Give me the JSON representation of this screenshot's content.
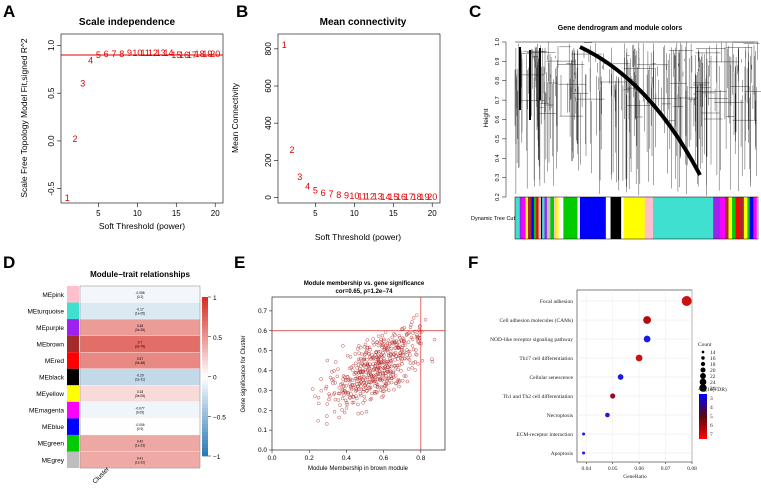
{
  "colors": {
    "red": "#e00000",
    "pos": "#d7301f",
    "neg": "#2c7fb8"
  },
  "chart_data": [
    {
      "panel": "A",
      "type": "scatter",
      "title": "Scale independence",
      "xlabel": "Soft Threshold (power)",
      "ylabel": "Scale Free Topology Model Fit,signed R^2",
      "x": [
        1,
        2,
        3,
        4,
        5,
        6,
        7,
        8,
        9,
        10,
        11,
        12,
        13,
        14,
        15,
        16,
        17,
        18,
        19,
        20
      ],
      "y": [
        -0.6,
        0.02,
        0.6,
        0.84,
        0.9,
        0.91,
        0.91,
        0.91,
        0.92,
        0.92,
        0.92,
        0.92,
        0.92,
        0.92,
        0.9,
        0.9,
        0.9,
        0.91,
        0.91,
        0.91
      ],
      "hline": 0.9,
      "xlim": [
        0.2,
        21
      ],
      "ylim": [
        -0.65,
        1.12
      ],
      "xticks": [
        "5",
        "10",
        "15",
        "20"
      ],
      "yticks": [
        "-0.5",
        "0.0",
        "0.5",
        "1.0"
      ]
    },
    {
      "panel": "B",
      "type": "scatter",
      "title": "Mean connectivity",
      "xlabel": "Soft Threshold (power)",
      "ylabel": "Mean Connectivity",
      "x": [
        1,
        2,
        3,
        4,
        5,
        6,
        7,
        8,
        9,
        10,
        11,
        12,
        13,
        14,
        15,
        16,
        17,
        18,
        19,
        20
      ],
      "y": [
        820,
        255,
        110,
        60,
        38,
        25,
        18,
        13,
        10,
        8,
        6,
        5,
        4,
        3,
        3,
        2,
        2,
        2,
        1,
        1
      ],
      "xlim": [
        0.2,
        21
      ],
      "ylim": [
        -30,
        880
      ],
      "xticks": [
        "5",
        "10",
        "15",
        "20"
      ],
      "yticks": [
        "0",
        "200",
        "400",
        "600",
        "800"
      ]
    },
    {
      "panel": "C",
      "type": "dendrogram",
      "title": "Gene dendrogram and module colors",
      "ylabel": "Height",
      "row_label": "Dynamic Tree Cut",
      "yticks": [
        "0.2",
        "0.3",
        "0.4",
        "0.5",
        "0.6",
        "0.7",
        "0.8",
        "0.9",
        "1.0"
      ]
    },
    {
      "panel": "D",
      "type": "heatmap",
      "title": "Module−trait relationships",
      "xlabel": "Cluster",
      "modules": [
        "MEpink",
        "MEturquoise",
        "MEpurple",
        "MEbrown",
        "MEred",
        "MEblack",
        "MEyellow",
        "MEmagenta",
        "MEblue",
        "MEgreen",
        "MEgrey"
      ],
      "module_colors": [
        "#ffc0cb",
        "#40e0d0",
        "#a020f0",
        "#a52a2a",
        "#ff0000",
        "#000000",
        "#ffff00",
        "#ff00ff",
        "#0000ff",
        "#00cc00",
        "#bebebe"
      ],
      "values": [
        -0.058,
        -0.17,
        0.48,
        0.7,
        0.57,
        -0.29,
        0.18,
        -0.077,
        -0.006,
        0.42,
        0.41
      ],
      "pvalues": [
        "(0.2)",
        "(1e-05)",
        "(3e-35)",
        "(3e-79)",
        "(3e-48)",
        "(1e-11)",
        "(3e-05)",
        "(0.05)",
        "(0.9)",
        "(1e-23)",
        "(1e-22)"
      ],
      "scale_ticks": [
        "1",
        "0.5",
        "0",
        "−0.5",
        "−1"
      ]
    },
    {
      "panel": "E",
      "type": "scatter",
      "title": "Module membership vs. gene significance",
      "subtitle": "cor=0.65, p=1.2e−74",
      "xlabel": "Module Membership in brown module",
      "ylabel": "Gene significance for  Cluster",
      "xlim": [
        0,
        0.93
      ],
      "ylim": [
        0,
        0.77
      ],
      "vline": 0.8,
      "hline": 0.6,
      "xticks": [
        "0.0",
        "0.2",
        "0.4",
        "0.6",
        "0.8"
      ],
      "yticks": [
        "0.0",
        "0.1",
        "0.2",
        "0.3",
        "0.4",
        "0.5",
        "0.6",
        "0.7"
      ]
    },
    {
      "panel": "F",
      "type": "scatter",
      "subtype": "bubble",
      "xlabel": "GeneRatio",
      "categories": [
        "Focal adhesion",
        "Cell adhesion molecules (CAMs)",
        "NOD-like receptor signaling pathway",
        "Th17 cell differentiation",
        "Cellular senescence",
        "Th1 and Th2 cell differentiation",
        "Necroptosis",
        "ECM-receptor interaction",
        "Apoptosis"
      ],
      "x": [
        0.078,
        0.063,
        0.063,
        0.06,
        0.053,
        0.05,
        0.048,
        0.039,
        0.039
      ],
      "count": [
        26,
        22,
        20,
        20,
        18,
        17,
        16,
        13,
        13
      ],
      "neglog10fdr": [
        7,
        6.8,
        2.6,
        7,
        3,
        6,
        3,
        2.5,
        2.5
      ],
      "xlim": [
        0.0365,
        0.08
      ],
      "xticks": [
        "0.04",
        "0.05",
        "0.06",
        "0.07",
        "0.08"
      ],
      "legend_count_title": "Count",
      "legend_count": [
        "14",
        "16",
        "18",
        "20",
        "22",
        "24",
        "26"
      ],
      "legend_fdr_title": "-log10(FDR)",
      "legend_fdr": [
        "3",
        "4",
        "5",
        "6",
        "7"
      ]
    }
  ]
}
